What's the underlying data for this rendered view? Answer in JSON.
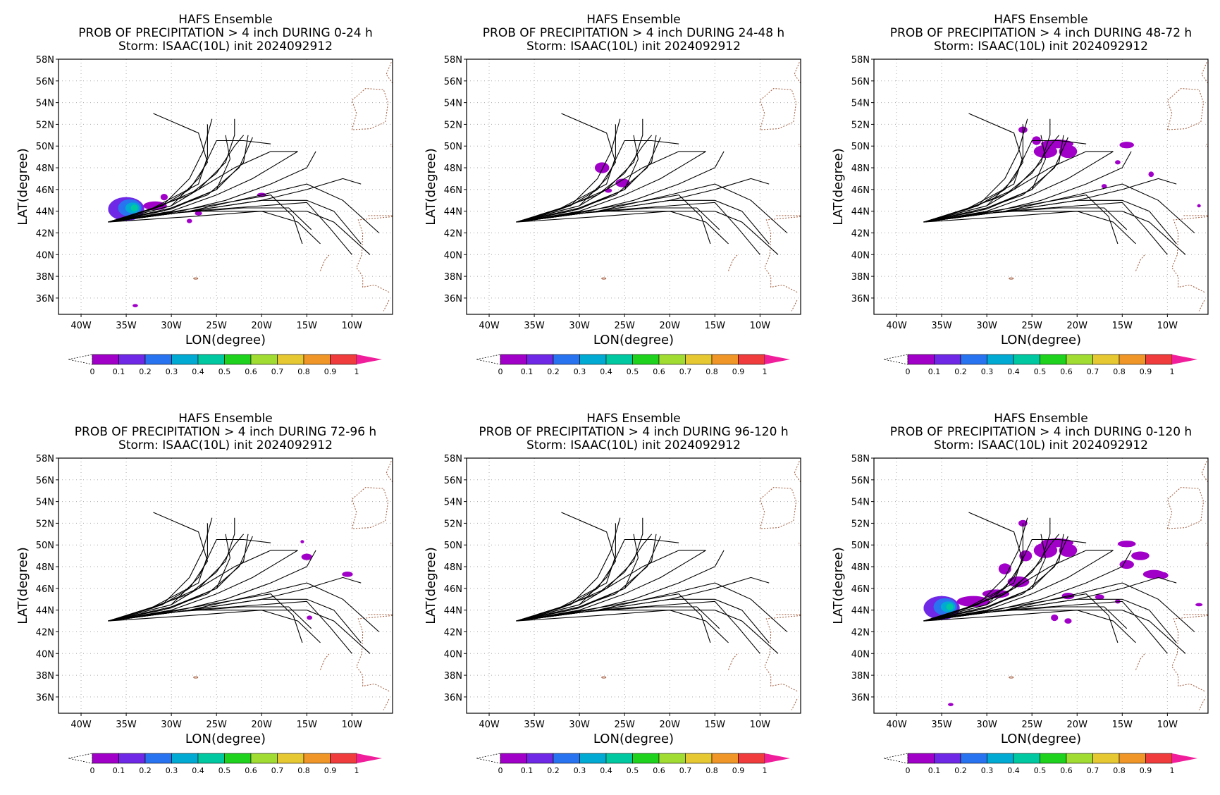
{
  "page": {
    "title": "HAFS Ensemble",
    "storm_line": "Storm: ISAAC(10L) init 2024092912"
  },
  "axes": {
    "xlabel": "LON(degree)",
    "ylabel": "LAT(degree)",
    "xlim": [
      -42.5,
      -5.5
    ],
    "ylim": [
      34.5,
      58
    ],
    "xticks": [
      -40,
      -35,
      -30,
      -25,
      -20,
      -15,
      -10
    ],
    "xtick_labels": [
      "40W",
      "35W",
      "30W",
      "25W",
      "20W",
      "15W",
      "10W"
    ],
    "yticks": [
      36,
      38,
      40,
      42,
      44,
      46,
      48,
      50,
      52,
      54,
      56,
      58
    ],
    "ytick_labels": [
      "36N",
      "38N",
      "40N",
      "42N",
      "44N",
      "46N",
      "48N",
      "50N",
      "52N",
      "54N",
      "56N",
      "58N"
    ],
    "grid": true
  },
  "colorbar": {
    "labels": [
      "0",
      "0.1",
      "0.2",
      "0.3",
      "0.4",
      "0.5",
      "0.6",
      "0.7",
      "0.8",
      "0.9",
      "1"
    ],
    "colors": [
      "#a000c8",
      "#6e28e6",
      "#2873f0",
      "#00aad2",
      "#00c8a0",
      "#1ed21e",
      "#a0dc32",
      "#e6c832",
      "#f09628",
      "#f03c3c"
    ],
    "over_color": "#f01e9b"
  },
  "track_color": "#000000",
  "coast_color": "#a05a3c",
  "tracks": [
    {
      "points": [
        [
          -37,
          43
        ],
        [
          -33,
          44
        ],
        [
          -28,
          45.5
        ],
        [
          -25,
          47.5
        ],
        [
          -23,
          50
        ],
        [
          -22,
          51
        ]
      ]
    },
    {
      "points": [
        [
          -37,
          43
        ],
        [
          -32,
          44.2
        ],
        [
          -27,
          46
        ],
        [
          -24,
          48.5
        ],
        [
          -23,
          51
        ],
        [
          -23,
          52.5
        ]
      ]
    },
    {
      "points": [
        [
          -37,
          43
        ],
        [
          -31,
          44.5
        ],
        [
          -28,
          47
        ],
        [
          -26.5,
          49.5
        ],
        [
          -25.5,
          52.5
        ]
      ]
    },
    {
      "points": [
        [
          -37,
          43
        ],
        [
          -32,
          44.3
        ],
        [
          -27,
          46.5
        ],
        [
          -26,
          49
        ],
        [
          -26,
          52
        ]
      ]
    },
    {
      "points": [
        [
          -37,
          43
        ],
        [
          -31,
          44
        ],
        [
          -26,
          45.5
        ],
        [
          -22.5,
          48
        ],
        [
          -21,
          50.8
        ]
      ]
    },
    {
      "points": [
        [
          -37,
          43
        ],
        [
          -30,
          44.3
        ],
        [
          -25,
          46
        ],
        [
          -22,
          48.5
        ],
        [
          -21.5,
          51
        ]
      ]
    },
    {
      "points": [
        [
          -37,
          43
        ],
        [
          -30,
          44.5
        ],
        [
          -27,
          47
        ],
        [
          -25,
          50.5
        ],
        [
          -22,
          50.5
        ],
        [
          -19,
          50.2
        ]
      ]
    },
    {
      "points": [
        [
          -37,
          43
        ],
        [
          -30,
          44
        ],
        [
          -25,
          45.5
        ],
        [
          -21,
          47
        ],
        [
          -18,
          48.5
        ],
        [
          -16,
          49.5
        ]
      ]
    },
    {
      "points": [
        [
          -37,
          43
        ],
        [
          -29,
          44
        ],
        [
          -24,
          45
        ],
        [
          -19,
          46.5
        ],
        [
          -15,
          48
        ],
        [
          -14,
          49.5
        ]
      ]
    },
    {
      "points": [
        [
          -37,
          43
        ],
        [
          -28,
          44
        ],
        [
          -20,
          45
        ],
        [
          -15,
          46
        ],
        [
          -11,
          47
        ],
        [
          -9,
          46.5
        ]
      ]
    },
    {
      "points": [
        [
          -37,
          43
        ],
        [
          -28,
          44
        ],
        [
          -20,
          45.5
        ],
        [
          -15,
          46.5
        ],
        [
          -11,
          45
        ],
        [
          -7,
          42
        ]
      ]
    },
    {
      "points": [
        [
          -37,
          43
        ],
        [
          -28,
          44
        ],
        [
          -20,
          45
        ],
        [
          -15,
          45
        ],
        [
          -12,
          44
        ],
        [
          -9,
          41
        ]
      ]
    },
    {
      "points": [
        [
          -37,
          43
        ],
        [
          -28,
          43.5
        ],
        [
          -20,
          44
        ],
        [
          -16,
          43
        ],
        [
          -13.5,
          41
        ]
      ]
    },
    {
      "points": [
        [
          -37,
          43
        ],
        [
          -30,
          43.8
        ],
        [
          -22,
          44.3
        ],
        [
          -17,
          44.3
        ],
        [
          -14.5,
          42.3
        ]
      ]
    },
    {
      "points": [
        [
          -37,
          43
        ],
        [
          -28,
          44
        ],
        [
          -20,
          44.5
        ],
        [
          -15,
          44.8
        ],
        [
          -12.5,
          42.5
        ],
        [
          -10,
          40
        ]
      ]
    },
    {
      "points": [
        [
          -37,
          43
        ],
        [
          -28,
          44
        ],
        [
          -20,
          44
        ],
        [
          -15,
          44
        ],
        [
          -12,
          43
        ],
        [
          -8,
          40
        ]
      ]
    },
    {
      "points": [
        [
          -37,
          43
        ],
        [
          -28,
          44.2
        ],
        [
          -19,
          45.5
        ],
        [
          -16.5,
          43.5
        ],
        [
          -15.5,
          41
        ]
      ]
    },
    {
      "points": [
        [
          -37,
          43
        ],
        [
          -30,
          44.5
        ],
        [
          -26,
          46.5
        ],
        [
          -23,
          48
        ],
        [
          -19,
          49.5
        ],
        [
          -16,
          49.5
        ]
      ]
    },
    {
      "points": [
        [
          -37,
          43
        ],
        [
          -31,
          44.5
        ],
        [
          -28,
          46
        ],
        [
          -26,
          48.5
        ],
        [
          -27,
          51.2
        ],
        [
          -32,
          53
        ]
      ]
    },
    {
      "points": [
        [
          -37,
          43
        ],
        [
          -30,
          44.2
        ],
        [
          -25,
          46
        ],
        [
          -23.5,
          48.8
        ],
        [
          -24,
          51
        ]
      ]
    }
  ],
  "panels": [
    {
      "subtitle": "PROB OF PRECIPITATION > 4 inch DURING  0-24 h",
      "blobs": [
        {
          "lon": -35,
          "lat": 44.2,
          "rx": 2.0,
          "ry": 1.1,
          "p": 0.12
        },
        {
          "lon": -34.6,
          "lat": 44.3,
          "rx": 1.3,
          "ry": 0.8,
          "p": 0.25
        },
        {
          "lon": -34.3,
          "lat": 44.3,
          "rx": 0.8,
          "ry": 0.5,
          "p": 0.38
        },
        {
          "lon": -34.1,
          "lat": 44.3,
          "rx": 0.4,
          "ry": 0.3,
          "p": 0.45
        },
        {
          "lon": -31.8,
          "lat": 44.5,
          "rx": 1.3,
          "ry": 0.4,
          "p": 0.05
        },
        {
          "lon": -30.8,
          "lat": 45.3,
          "rx": 0.4,
          "ry": 0.3,
          "p": 0.05
        },
        {
          "lon": -20,
          "lat": 45.5,
          "rx": 0.5,
          "ry": 0.2,
          "p": 0.05
        },
        {
          "lon": -27,
          "lat": 43.8,
          "rx": 0.4,
          "ry": 0.2,
          "p": 0.05
        },
        {
          "lon": -28,
          "lat": 43.1,
          "rx": 0.3,
          "ry": 0.2,
          "p": 0.05
        },
        {
          "lon": -34,
          "lat": 35.3,
          "rx": 0.3,
          "ry": 0.15,
          "p": 0.05
        }
      ]
    },
    {
      "subtitle": "PROB OF PRECIPITATION > 4 inch DURING 24-48 h",
      "blobs": [
        {
          "lon": -27.5,
          "lat": 48,
          "rx": 0.8,
          "ry": 0.5,
          "p": 0.05
        },
        {
          "lon": -25.2,
          "lat": 46.6,
          "rx": 0.8,
          "ry": 0.4,
          "p": 0.05
        },
        {
          "lon": -26.8,
          "lat": 45.9,
          "rx": 0.4,
          "ry": 0.2,
          "p": 0.05
        }
      ]
    },
    {
      "subtitle": "PROB OF PRECIPITATION > 4 inch DURING 48-72 h",
      "blobs": [
        {
          "lon": -26,
          "lat": 51.5,
          "rx": 0.5,
          "ry": 0.3,
          "p": 0.05
        },
        {
          "lon": -22.2,
          "lat": 50.2,
          "rx": 1.8,
          "ry": 0.4,
          "p": 0.05
        },
        {
          "lon": -23.5,
          "lat": 49.5,
          "rx": 1.3,
          "ry": 0.6,
          "p": 0.05
        },
        {
          "lon": -21,
          "lat": 49.5,
          "rx": 1.0,
          "ry": 0.6,
          "p": 0.05
        },
        {
          "lon": -24.5,
          "lat": 50.5,
          "rx": 0.5,
          "ry": 0.4,
          "p": 0.05
        },
        {
          "lon": -14.5,
          "lat": 50.1,
          "rx": 0.8,
          "ry": 0.3,
          "p": 0.05
        },
        {
          "lon": -15.5,
          "lat": 48.5,
          "rx": 0.3,
          "ry": 0.2,
          "p": 0.05
        },
        {
          "lon": -11.8,
          "lat": 47.4,
          "rx": 0.3,
          "ry": 0.25,
          "p": 0.05
        },
        {
          "lon": -17,
          "lat": 46.3,
          "rx": 0.3,
          "ry": 0.2,
          "p": 0.05
        },
        {
          "lon": -6.5,
          "lat": 44.5,
          "rx": 0.2,
          "ry": 0.15,
          "p": 0.05
        }
      ]
    },
    {
      "subtitle": "PROB OF PRECIPITATION > 4 inch DURING 72-96 h",
      "blobs": [
        {
          "lon": -15,
          "lat": 48.9,
          "rx": 0.6,
          "ry": 0.3,
          "p": 0.05
        },
        {
          "lon": -15.5,
          "lat": 50.3,
          "rx": 0.2,
          "ry": 0.15,
          "p": 0.05
        },
        {
          "lon": -10.5,
          "lat": 47.3,
          "rx": 0.6,
          "ry": 0.25,
          "p": 0.05
        },
        {
          "lon": -14.7,
          "lat": 43.3,
          "rx": 0.3,
          "ry": 0.2,
          "p": 0.05
        }
      ]
    },
    {
      "subtitle": "PROB OF PRECIPITATION > 4 inch DURING 96-120 h",
      "blobs": []
    },
    {
      "subtitle": "PROB OF PRECIPITATION > 4 inch DURING 0-120 h",
      "blobs": [
        {
          "lon": -35,
          "lat": 44.2,
          "rx": 2.0,
          "ry": 1.1,
          "p": 0.12
        },
        {
          "lon": -34.6,
          "lat": 44.3,
          "rx": 1.3,
          "ry": 0.8,
          "p": 0.25
        },
        {
          "lon": -34.3,
          "lat": 44.3,
          "rx": 0.8,
          "ry": 0.5,
          "p": 0.38
        },
        {
          "lon": -34.1,
          "lat": 44.3,
          "rx": 0.4,
          "ry": 0.3,
          "p": 0.45
        },
        {
          "lon": -31.5,
          "lat": 44.8,
          "rx": 1.8,
          "ry": 0.5,
          "p": 0.05
        },
        {
          "lon": -29,
          "lat": 45.5,
          "rx": 1.5,
          "ry": 0.4,
          "p": 0.05
        },
        {
          "lon": -26.5,
          "lat": 46.6,
          "rx": 1.2,
          "ry": 0.5,
          "p": 0.05
        },
        {
          "lon": -28,
          "lat": 47.8,
          "rx": 0.7,
          "ry": 0.5,
          "p": 0.05
        },
        {
          "lon": -26,
          "lat": 52,
          "rx": 0.5,
          "ry": 0.3,
          "p": 0.05
        },
        {
          "lon": -22.2,
          "lat": 50.2,
          "rx": 1.8,
          "ry": 0.4,
          "p": 0.05
        },
        {
          "lon": -23.5,
          "lat": 49.5,
          "rx": 1.3,
          "ry": 0.7,
          "p": 0.05
        },
        {
          "lon": -21,
          "lat": 49.5,
          "rx": 1.0,
          "ry": 0.6,
          "p": 0.05
        },
        {
          "lon": -25.7,
          "lat": 49,
          "rx": 0.7,
          "ry": 0.5,
          "p": 0.05
        },
        {
          "lon": -14.5,
          "lat": 50.1,
          "rx": 1.0,
          "ry": 0.3,
          "p": 0.05
        },
        {
          "lon": -13,
          "lat": 49,
          "rx": 1.0,
          "ry": 0.4,
          "p": 0.05
        },
        {
          "lon": -14.5,
          "lat": 48.2,
          "rx": 0.8,
          "ry": 0.4,
          "p": 0.05
        },
        {
          "lon": -11.5,
          "lat": 47.3,
          "rx": 1.2,
          "ry": 0.4,
          "p": 0.05
        },
        {
          "lon": -10.5,
          "lat": 47.2,
          "rx": 0.6,
          "ry": 0.3,
          "p": 0.05
        },
        {
          "lon": -21,
          "lat": 45.3,
          "rx": 0.7,
          "ry": 0.3,
          "p": 0.05
        },
        {
          "lon": -17.5,
          "lat": 45.2,
          "rx": 0.5,
          "ry": 0.25,
          "p": 0.05
        },
        {
          "lon": -15.5,
          "lat": 44.8,
          "rx": 0.3,
          "ry": 0.2,
          "p": 0.05
        },
        {
          "lon": -22.5,
          "lat": 43.3,
          "rx": 0.4,
          "ry": 0.3,
          "p": 0.05
        },
        {
          "lon": -21,
          "lat": 43,
          "rx": 0.4,
          "ry": 0.25,
          "p": 0.05
        },
        {
          "lon": -6.5,
          "lat": 44.5,
          "rx": 0.4,
          "ry": 0.15,
          "p": 0.05
        },
        {
          "lon": -34,
          "lat": 35.3,
          "rx": 0.3,
          "ry": 0.15,
          "p": 0.05
        }
      ]
    }
  ]
}
